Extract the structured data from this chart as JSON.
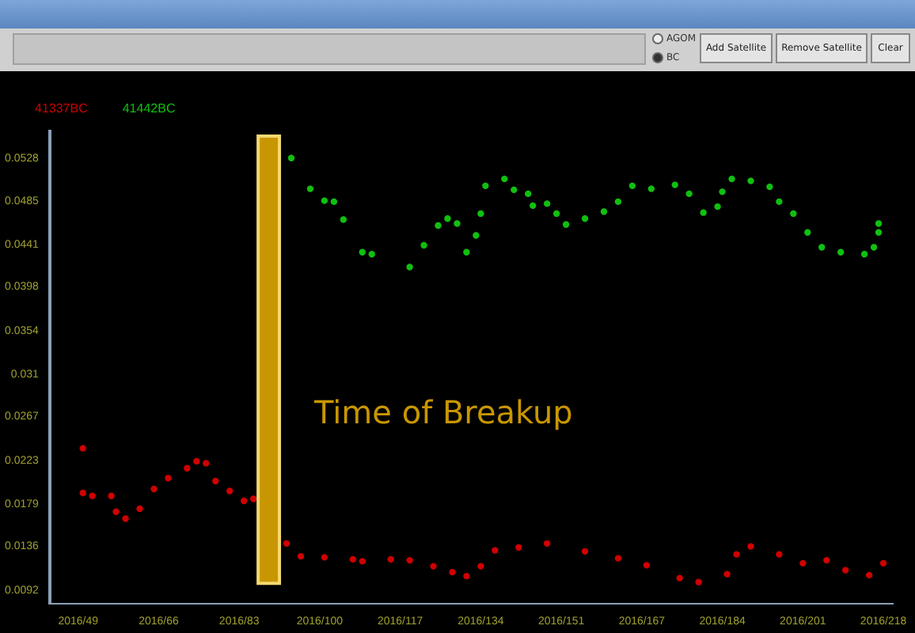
{
  "chart_data": {
    "type": "scatter",
    "legend": "top left",
    "grid": false,
    "marker": "circle",
    "annotations": [
      "AGOM",
      "BC",
      "Add Satellite",
      "Remove Satellite",
      "Clear"
    ],
    "xlim": [
      "2016-02-12",
      "2016-08-08"
    ],
    "xticks": [
      {
        "value": "2016-02-18",
        "label": "2016/49"
      },
      {
        "value": "2016-03-06",
        "label": "2016/66"
      },
      {
        "value": "2016-03-23",
        "label": "2016/83"
      },
      {
        "value": "2016-04-09",
        "label": "2016/100"
      },
      {
        "value": "2016-04-26",
        "label": "2016/117"
      },
      {
        "value": "2016-05-13",
        "label": "2016/134"
      },
      {
        "value": "2016-05-30",
        "label": "2016/151"
      },
      {
        "value": "2016-06-16",
        "label": "2016/167"
      },
      {
        "value": "2016-07-03",
        "label": "2016/184"
      },
      {
        "value": "2016-07-20",
        "label": "2016/201"
      },
      {
        "value": "2016-08-06",
        "label": "2016/218"
      }
    ],
    "ylim": [
      0.0078,
      0.0555
    ],
    "yticks": [
      0.0092,
      0.0136,
      0.0179,
      0.0223,
      0.0267,
      0.031,
      0.0354,
      0.0398,
      0.0441,
      0.0485,
      0.0528
    ],
    "bands": [
      {
        "axis": "x",
        "from": "2016-03-27",
        "to": "2016-03-31T12:00",
        "label": "Time of Breakup",
        "color": "#c89600"
      }
    ],
    "series": [
      {
        "name": "41337BC",
        "color": "#d00000",
        "x": [
          "2016-02-19",
          "2016-02-19",
          "2016-02-21",
          "2016-02-25",
          "2016-02-26",
          "2016-02-28",
          "2016-03-02",
          "2016-03-05",
          "2016-03-08",
          "2016-03-12",
          "2016-03-14",
          "2016-03-16",
          "2016-03-18",
          "2016-03-21",
          "2016-03-24",
          "2016-03-26",
          "2016-04-02",
          "2016-04-05",
          "2016-04-10",
          "2016-04-16",
          "2016-04-18",
          "2016-04-24",
          "2016-04-28",
          "2016-05-03",
          "2016-05-07",
          "2016-05-10",
          "2016-05-13",
          "2016-05-16",
          "2016-05-21",
          "2016-05-27",
          "2016-06-04",
          "2016-06-11",
          "2016-06-17",
          "2016-06-24",
          "2016-06-28",
          "2016-07-04",
          "2016-07-06",
          "2016-07-09",
          "2016-07-15",
          "2016-07-20",
          "2016-07-25",
          "2016-07-29",
          "2016-08-03",
          "2016-08-06"
        ],
        "values": [
          0.0235,
          0.019,
          0.0187,
          0.0187,
          0.0171,
          0.0164,
          0.0174,
          0.0194,
          0.0205,
          0.0215,
          0.0222,
          0.022,
          0.0202,
          0.0192,
          0.0182,
          0.0184,
          0.0139,
          0.0126,
          0.0125,
          0.0123,
          0.0121,
          0.0123,
          0.0122,
          0.0116,
          0.011,
          0.0106,
          0.0116,
          0.0132,
          0.0135,
          0.0139,
          0.0131,
          0.0124,
          0.0117,
          0.0104,
          0.01,
          0.0108,
          0.0128,
          0.0136,
          0.0128,
          0.0119,
          0.0122,
          0.0112,
          0.0107,
          0.0119
        ]
      },
      {
        "name": "41442BC",
        "color": "#10c010",
        "x": [
          "2016-04-03",
          "2016-04-07",
          "2016-04-10",
          "2016-04-12",
          "2016-04-14",
          "2016-04-18",
          "2016-04-20",
          "2016-04-28",
          "2016-05-01",
          "2016-05-04",
          "2016-05-06",
          "2016-05-08",
          "2016-05-10",
          "2016-05-12",
          "2016-05-13",
          "2016-05-14",
          "2016-05-18",
          "2016-05-20",
          "2016-05-23",
          "2016-05-24",
          "2016-05-27",
          "2016-05-29",
          "2016-05-31",
          "2016-06-04",
          "2016-06-08",
          "2016-06-11",
          "2016-06-14",
          "2016-06-18",
          "2016-06-23",
          "2016-06-26",
          "2016-06-29",
          "2016-07-02",
          "2016-07-03",
          "2016-07-05",
          "2016-07-09",
          "2016-07-13",
          "2016-07-15",
          "2016-07-18",
          "2016-07-21",
          "2016-07-24",
          "2016-07-28",
          "2016-08-02",
          "2016-08-04",
          "2016-08-05",
          "2016-08-05"
        ],
        "values": [
          0.0528,
          0.0497,
          0.0485,
          0.0484,
          0.0466,
          0.0433,
          0.0431,
          0.0418,
          0.044,
          0.046,
          0.0467,
          0.0462,
          0.0433,
          0.045,
          0.0472,
          0.05,
          0.0507,
          0.0496,
          0.0492,
          0.048,
          0.0482,
          0.0472,
          0.0461,
          0.0467,
          0.0474,
          0.0484,
          0.05,
          0.0497,
          0.0501,
          0.0492,
          0.0473,
          0.0479,
          0.0494,
          0.0507,
          0.0505,
          0.0499,
          0.0484,
          0.0472,
          0.0453,
          0.0438,
          0.0433,
          0.0431,
          0.0438,
          0.0453,
          0.0462
        ]
      }
    ]
  }
}
